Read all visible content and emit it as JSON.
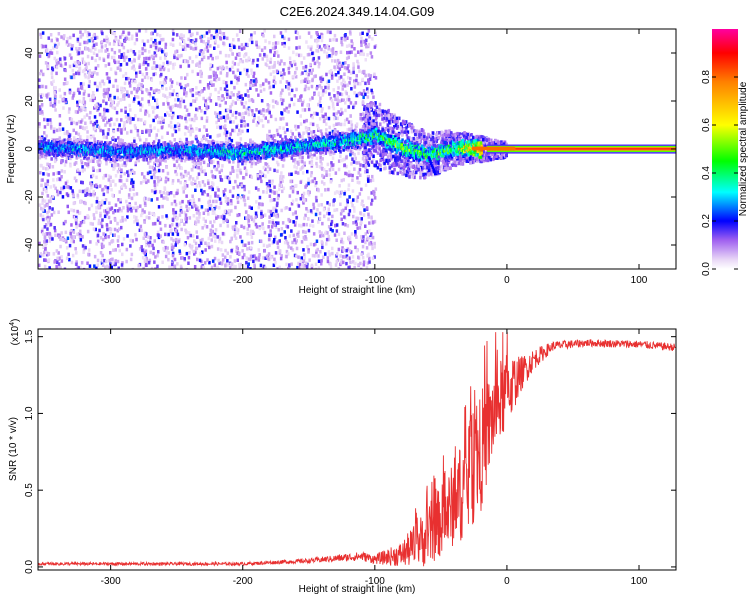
{
  "title": "C2E6.2024.349.14.04.G09",
  "colorbar": {
    "label": "Normalized spectral amplitude",
    "ticks": [
      {
        "value": 0.0,
        "label": "0.0"
      },
      {
        "value": 0.2,
        "label": "0.2"
      },
      {
        "value": 0.4,
        "label": "0.4"
      },
      {
        "value": 0.6,
        "label": "0.6"
      },
      {
        "value": 0.8,
        "label": "0.8"
      }
    ],
    "range": [
      0,
      1
    ]
  },
  "chart_data": [
    {
      "type": "heatmap",
      "xlabel": "Height of straight line (km)",
      "ylabel": "Frequency (Hz)",
      "xlim": [
        -355,
        128
      ],
      "ylim": [
        -50,
        50
      ],
      "xticks": [
        {
          "value": -300,
          "label": "-300"
        },
        {
          "value": -200,
          "label": "-200"
        },
        {
          "value": -100,
          "label": "-100"
        },
        {
          "value": 0,
          "label": "0"
        },
        {
          "value": 100,
          "label": "100"
        }
      ],
      "yticks": [
        {
          "value": -40,
          "label": "-40"
        },
        {
          "value": -20,
          "label": "-20"
        },
        {
          "value": 0,
          "label": "0"
        },
        {
          "value": 20,
          "label": "20"
        },
        {
          "value": 40,
          "label": "40"
        }
      ],
      "ridge": [
        {
          "x": -350,
          "f": 1.5,
          "a": 0.3
        },
        {
          "x": -300,
          "f": -0.5,
          "a": 0.3
        },
        {
          "x": -250,
          "f": 0,
          "a": 0.3
        },
        {
          "x": -200,
          "f": -1,
          "a": 0.35
        },
        {
          "x": -150,
          "f": 2,
          "a": 0.35
        },
        {
          "x": -120,
          "f": 4,
          "a": 0.35
        },
        {
          "x": -100,
          "f": 6.5,
          "a": 0.45
        },
        {
          "x": -80,
          "f": 1,
          "a": 0.5
        },
        {
          "x": -60,
          "f": -2,
          "a": 0.45
        },
        {
          "x": -40,
          "f": 1,
          "a": 0.5
        },
        {
          "x": -25,
          "f": 1,
          "a": 0.75
        },
        {
          "x": -15,
          "f": 0.3,
          "a": 0.95
        },
        {
          "x": 128,
          "f": 0.3,
          "a": 0.95
        }
      ]
    },
    {
      "type": "line",
      "xlabel": "Height of straight line (km)",
      "ylabel": "SNR (10 * v/v)",
      "y_multiplier_label": "(x10",
      "y_multiplier_exp": "4",
      "y_multiplier_close": ")",
      "xlim": [
        -355,
        128
      ],
      "ylim": [
        -0.02,
        1.55
      ],
      "xticks": [
        {
          "value": -300,
          "label": "-300"
        },
        {
          "value": -200,
          "label": "-200"
        },
        {
          "value": -100,
          "label": "-100"
        },
        {
          "value": 0,
          "label": "0"
        },
        {
          "value": 100,
          "label": "100"
        }
      ],
      "yticks": [
        {
          "value": 0.0,
          "label": "0.0"
        },
        {
          "value": 0.5,
          "label": "0.5"
        },
        {
          "value": 1.0,
          "label": "1.0"
        },
        {
          "value": 1.5,
          "label": "1.5"
        }
      ],
      "envelope": [
        {
          "x": -355,
          "base": 0.02,
          "noise": 0.01
        },
        {
          "x": -200,
          "base": 0.02,
          "noise": 0.01
        },
        {
          "x": -150,
          "base": 0.04,
          "noise": 0.015
        },
        {
          "x": -110,
          "base": 0.07,
          "noise": 0.03
        },
        {
          "x": -100,
          "base": 0.05,
          "noise": 0.03
        },
        {
          "x": -80,
          "base": 0.08,
          "noise": 0.08
        },
        {
          "x": -60,
          "base": 0.2,
          "noise": 0.2
        },
        {
          "x": -45,
          "base": 0.35,
          "noise": 0.25
        },
        {
          "x": -30,
          "base": 0.55,
          "noise": 0.35
        },
        {
          "x": -20,
          "base": 0.75,
          "noise": 0.4
        },
        {
          "x": -10,
          "base": 1.0,
          "noise": 0.3
        },
        {
          "x": 0,
          "base": 1.15,
          "noise": 0.25
        },
        {
          "x": 10,
          "base": 1.25,
          "noise": 0.12
        },
        {
          "x": 20,
          "base": 1.35,
          "noise": 0.07
        },
        {
          "x": 35,
          "base": 1.44,
          "noise": 0.03
        },
        {
          "x": 60,
          "base": 1.46,
          "noise": 0.025
        },
        {
          "x": 100,
          "base": 1.45,
          "noise": 0.025
        },
        {
          "x": 128,
          "base": 1.43,
          "noise": 0.025
        }
      ],
      "color": "#e83030"
    }
  ]
}
